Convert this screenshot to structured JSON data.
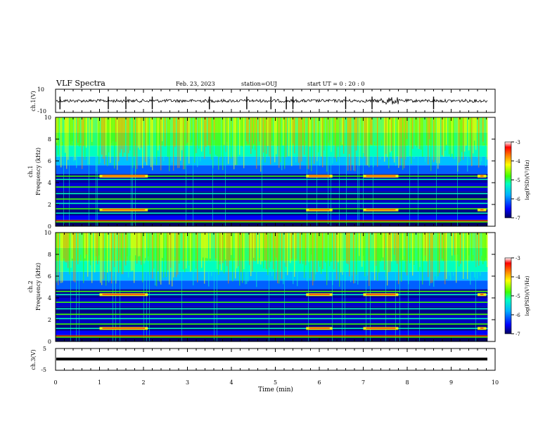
{
  "header": {
    "title": "VLF Spectra",
    "date": "Feb. 23, 2023",
    "station": "station=OUJ",
    "start_ut": "start  UT =   0  : 20 : 0"
  },
  "chart_data": [
    {
      "type": "line",
      "panel": "waveform-ch1",
      "ylabel": "ch.1(V)",
      "ylim": [
        -10,
        10
      ],
      "yticks": [
        "10",
        "-10"
      ],
      "xlim": [
        0,
        10
      ],
      "description": "broadband waveform, approximately -1 to 1 V with impulsive spikes; larger burst near 7.6 min"
    },
    {
      "type": "heatmap",
      "panel": "spectrogram-ch1",
      "ylabel": "ch.1\nFrequency (kHz)",
      "ylim": [
        0,
        10
      ],
      "yticks": [
        "0",
        "2",
        "4",
        "6",
        "8",
        "10"
      ],
      "xlim": [
        0,
        10
      ],
      "colorbar": {
        "label": "log(PSD)(V²/Hz)",
        "range": [
          -7,
          -3
        ],
        "ticks": [
          "-3",
          "-4",
          "-5",
          "-6",
          "-7"
        ]
      },
      "features": {
        "hiss_band_khz": [
          5,
          10
        ],
        "lines_khz": [
          0.4,
          1.2,
          1.6,
          2.1,
          2.5,
          3.0,
          3.6,
          4.3,
          4.6
        ],
        "emission_episodes_min": [
          [
            1.0,
            2.1
          ],
          [
            5.7,
            6.3
          ],
          [
            7.0,
            7.8
          ],
          [
            9.6,
            9.8
          ]
        ],
        "emission_band_khz": [
          1.5,
          4.6
        ]
      }
    },
    {
      "type": "heatmap",
      "panel": "spectrogram-ch2",
      "ylabel": "ch.2\nFrequency (kHz)",
      "ylim": [
        0,
        10
      ],
      "yticks": [
        "0",
        "2",
        "4",
        "6",
        "8",
        "10"
      ],
      "xlim": [
        0,
        10
      ],
      "colorbar": {
        "label": "log(PSD)(V²/Hz)",
        "range": [
          -7,
          -3
        ],
        "ticks": [
          "-3",
          "-4",
          "-5",
          "-6",
          "-7"
        ]
      },
      "features": {
        "hiss_band_khz": [
          5,
          10
        ],
        "lines_khz": [
          0.4,
          1.2,
          1.6,
          2.1,
          2.5,
          3.0,
          3.6,
          4.3,
          4.6
        ],
        "emission_episodes_min": [
          [
            1.0,
            2.1
          ],
          [
            5.7,
            6.3
          ],
          [
            7.0,
            7.8
          ],
          [
            9.6,
            9.8
          ]
        ],
        "emission_band_khz": [
          1.2,
          4.3
        ]
      }
    },
    {
      "type": "line",
      "panel": "waveform-ch3",
      "ylabel": "ch.3(V)",
      "ylim": [
        -5,
        5
      ],
      "yticks": [
        "5",
        "-5"
      ],
      "xlim": [
        0,
        10
      ],
      "description": "flat signal near -1 V"
    }
  ],
  "x_axis": {
    "label": "Time (min)",
    "ticks": [
      "0",
      "1",
      "2",
      "3",
      "4",
      "5",
      "6",
      "7",
      "8",
      "9",
      "10"
    ]
  },
  "colors": {
    "colormap": [
      "#000060",
      "#0000ff",
      "#00b0ff",
      "#00ffc0",
      "#40ff00",
      "#ffff00",
      "#ff8000",
      "#ff0000",
      "#ffffff"
    ]
  }
}
